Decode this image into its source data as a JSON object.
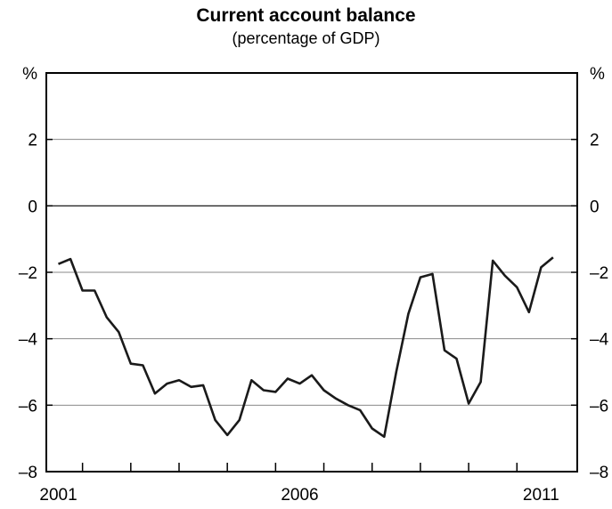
{
  "chart_data": {
    "type": "line",
    "title": "Current account balance",
    "subtitle": "(percentage of GDP)",
    "ylabel_left": "%",
    "ylabel_right": "%",
    "ylim": [
      -8,
      4
    ],
    "yticks": [
      -8,
      -6,
      -4,
      -2,
      0,
      2
    ],
    "ytick_labels": [
      "–8",
      "–6",
      "–4",
      "–2",
      "0",
      "2"
    ],
    "xlim": [
      2000.75,
      2011.75
    ],
    "x_tick_labels": [
      {
        "label": "2001",
        "x": 2001
      },
      {
        "label": "2006",
        "x": 2006
      },
      {
        "label": "2011",
        "x": 2011
      }
    ],
    "x_minor_ticks": [
      2001.5,
      2002.5,
      2003.5,
      2004.5,
      2005.5,
      2006.5,
      2007.5,
      2008.5,
      2009.5,
      2010.5
    ],
    "grid": true,
    "zero_line": true,
    "series": [
      {
        "color": "#1a1a1a",
        "points": [
          [
            2001.0,
            -1.75
          ],
          [
            2001.25,
            -1.6
          ],
          [
            2001.5,
            -2.55
          ],
          [
            2001.75,
            -2.55
          ],
          [
            2002.0,
            -3.35
          ],
          [
            2002.25,
            -3.8
          ],
          [
            2002.5,
            -4.75
          ],
          [
            2002.75,
            -4.8
          ],
          [
            2003.0,
            -5.65
          ],
          [
            2003.25,
            -5.35
          ],
          [
            2003.5,
            -5.25
          ],
          [
            2003.75,
            -5.45
          ],
          [
            2004.0,
            -5.4
          ],
          [
            2004.25,
            -6.45
          ],
          [
            2004.5,
            -6.9
          ],
          [
            2004.75,
            -6.45
          ],
          [
            2005.0,
            -5.25
          ],
          [
            2005.25,
            -5.55
          ],
          [
            2005.5,
            -5.6
          ],
          [
            2005.75,
            -5.2
          ],
          [
            2006.0,
            -5.35
          ],
          [
            2006.25,
            -5.1
          ],
          [
            2006.5,
            -5.55
          ],
          [
            2006.75,
            -5.8
          ],
          [
            2007.0,
            -6.0
          ],
          [
            2007.25,
            -6.15
          ],
          [
            2007.5,
            -6.7
          ],
          [
            2007.75,
            -6.95
          ],
          [
            2008.0,
            -5.0
          ],
          [
            2008.25,
            -3.25
          ],
          [
            2008.5,
            -2.15
          ],
          [
            2008.75,
            -2.05
          ],
          [
            2009.0,
            -4.35
          ],
          [
            2009.25,
            -4.6
          ],
          [
            2009.5,
            -5.95
          ],
          [
            2009.75,
            -5.3
          ],
          [
            2010.0,
            -1.65
          ],
          [
            2010.25,
            -2.1
          ],
          [
            2010.5,
            -2.45
          ],
          [
            2010.75,
            -3.2
          ],
          [
            2011.0,
            -1.85
          ],
          [
            2011.25,
            -1.55
          ]
        ]
      }
    ]
  }
}
